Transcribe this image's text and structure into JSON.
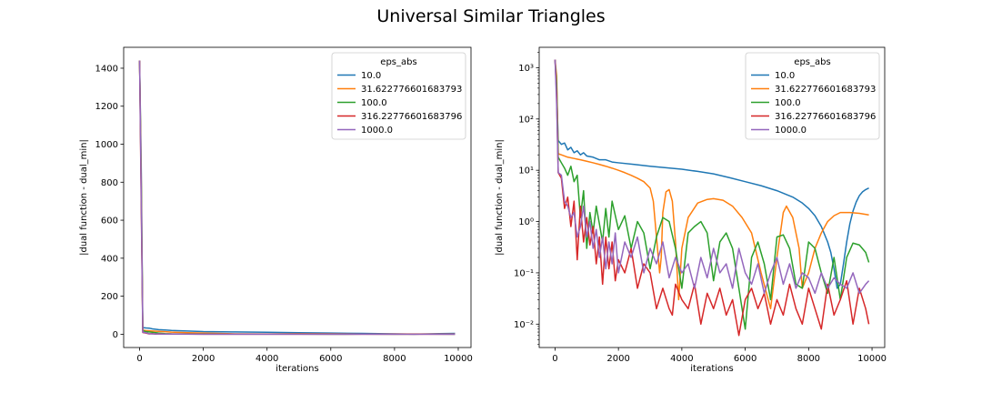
{
  "figure_title": "Universal Similar Triangles",
  "chart_data": [
    {
      "type": "line",
      "title": "",
      "xlabel": "iterations",
      "ylabel": "|dual function - dual_min|",
      "yscale": "linear",
      "xlim": [
        -500,
        10400
      ],
      "ylim": [
        -70,
        1510
      ],
      "xticks": [
        0,
        2000,
        4000,
        6000,
        8000,
        10000
      ],
      "yticks": [
        0,
        200,
        400,
        600,
        800,
        1000,
        1200,
        1400
      ],
      "ytick_labels": [
        "0",
        "200",
        "400",
        "600",
        "800",
        "1000",
        "1200",
        "1400"
      ],
      "grid": false,
      "legend": {
        "title": "eps_abs",
        "placement": "top-right"
      },
      "series": [
        {
          "name": "10.0",
          "color": "#1f77b4",
          "x": [
            0,
            50,
            100,
            200,
            300,
            400,
            600,
            800,
            1000,
            2000,
            3000,
            4000,
            5000,
            6000,
            7000,
            8000,
            8600,
            9000,
            9400,
            9900
          ],
          "y": [
            1440,
            900,
            35,
            33,
            32,
            28,
            24,
            22,
            20,
            14,
            12,
            10,
            8,
            6,
            4,
            2,
            0.3,
            1.2,
            3,
            4.5
          ]
        },
        {
          "name": "31.622776601683793",
          "color": "#ff7f0e",
          "x": [
            0,
            50,
            100,
            200,
            400,
            600,
            800,
            1000,
            1500,
            2000,
            3000,
            4000,
            5000,
            6000,
            7000,
            8000,
            9000,
            9900
          ],
          "y": [
            1440,
            850,
            21,
            19,
            17,
            15,
            13,
            11,
            8,
            6,
            2,
            1.5,
            2.5,
            2,
            0.8,
            1.5,
            1.4,
            1.3
          ]
        },
        {
          "name": "100.0",
          "color": "#2ca02c",
          "x": [
            0,
            50,
            100,
            200,
            400,
            600,
            800,
            1000,
            2000,
            3000,
            4000,
            5000,
            6000,
            7000,
            8000,
            9000,
            9900
          ],
          "y": [
            1440,
            800,
            18,
            14,
            10,
            6,
            3,
            2,
            1,
            0.5,
            0.8,
            0.6,
            0.1,
            0.5,
            0.2,
            0.4,
            0.15
          ]
        },
        {
          "name": "316.22776601683796",
          "color": "#d62728",
          "x": [
            0,
            50,
            100,
            200,
            300,
            400,
            500,
            600,
            800,
            1000,
            2000,
            3000,
            4000,
            5000,
            6000,
            7000,
            8000,
            9000,
            9900
          ],
          "y": [
            1440,
            700,
            9,
            6,
            1.8,
            3,
            0.8,
            2,
            0.6,
            1,
            0.2,
            0.08,
            0.05,
            0.03,
            0.02,
            0.04,
            0.02,
            0.03,
            0.01
          ]
        },
        {
          "name": "1000.0",
          "color": "#9467bd",
          "x": [
            0,
            50,
            100,
            200,
            300,
            400,
            500,
            600,
            800,
            1000,
            2000,
            3000,
            4000,
            5000,
            6000,
            7000,
            8000,
            9000,
            9900
          ],
          "y": [
            1440,
            750,
            10,
            8,
            2.5,
            2,
            1,
            1.5,
            0.5,
            0.8,
            0.3,
            0.2,
            0.15,
            0.2,
            0.1,
            0.08,
            0.1,
            0.08,
            0.06
          ]
        }
      ]
    },
    {
      "type": "line",
      "title": "",
      "xlabel": "iterations",
      "ylabel": "|dual function - dual_min|",
      "yscale": "log",
      "xlim": [
        -500,
        10400
      ],
      "ylim": [
        0.0035,
        2500
      ],
      "xticks": [
        0,
        2000,
        4000,
        6000,
        8000,
        10000
      ],
      "yticks": [
        0.01,
        0.1,
        1,
        10,
        100,
        1000
      ],
      "ytick_labels": [
        "10⁻²",
        "10⁻¹",
        "10⁰",
        "10¹",
        "10²",
        "10³"
      ],
      "grid": false,
      "legend": {
        "title": "eps_abs",
        "placement": "top-right"
      },
      "series": [
        {
          "name": "10.0",
          "color": "#1f77b4",
          "x": [
            0,
            50,
            100,
            200,
            300,
            400,
            500,
            600,
            700,
            800,
            900,
            1000,
            1200,
            1400,
            1600,
            1800,
            2000,
            2500,
            3000,
            3500,
            4000,
            4500,
            5000,
            5500,
            6000,
            6500,
            7000,
            7500,
            7800,
            8000,
            8200,
            8400,
            8600,
            8700,
            8800,
            8900,
            9000,
            9100,
            9200,
            9300,
            9400,
            9500,
            9600,
            9700,
            9800,
            9900
          ],
          "y": [
            1440,
            400,
            38,
            32,
            34,
            25,
            28,
            22,
            24,
            20,
            22,
            19,
            18,
            16,
            16,
            14.5,
            14,
            13,
            12,
            11.2,
            10.5,
            9.5,
            8.5,
            7.2,
            6,
            5,
            4,
            3,
            2.3,
            1.8,
            1.3,
            0.8,
            0.4,
            0.25,
            0.12,
            0.05,
            0.06,
            0.15,
            0.4,
            0.9,
            1.6,
            2.4,
            3.2,
            3.8,
            4.2,
            4.5
          ]
        },
        {
          "name": "31.622776601683793",
          "color": "#ff7f0e",
          "x": [
            0,
            50,
            100,
            200,
            400,
            600,
            800,
            1000,
            1200,
            1400,
            1600,
            1800,
            2000,
            2200,
            2400,
            2600,
            2800,
            3000,
            3100,
            3200,
            3300,
            3350,
            3400,
            3500,
            3600,
            3700,
            3800,
            3900,
            4000,
            4200,
            4500,
            4800,
            5000,
            5300,
            5600,
            5900,
            6200,
            6500,
            6800,
            7000,
            7200,
            7300,
            7500,
            7700,
            7800,
            8000,
            8200,
            8400,
            8600,
            8800,
            9000,
            9300,
            9600,
            9900
          ],
          "y": [
            1440,
            700,
            21,
            20,
            18,
            17,
            16,
            15,
            14,
            13,
            12,
            11,
            10,
            9,
            8,
            7,
            6,
            4.5,
            2.5,
            0.5,
            0.1,
            0.2,
            1.5,
            3.8,
            4.2,
            2.5,
            0.4,
            0.03,
            0.3,
            1.2,
            2.3,
            2.7,
            2.8,
            2.6,
            2,
            1.2,
            0.6,
            0.1,
            0.02,
            0.2,
            1.5,
            2,
            1.2,
            0.3,
            0.05,
            0.1,
            0.3,
            0.6,
            1,
            1.3,
            1.5,
            1.5,
            1.45,
            1.35
          ]
        },
        {
          "name": "100.0",
          "color": "#2ca02c",
          "x": [
            0,
            50,
            100,
            200,
            300,
            400,
            500,
            600,
            700,
            800,
            900,
            1000,
            1100,
            1200,
            1300,
            1400,
            1500,
            1600,
            1700,
            1800,
            2000,
            2200,
            2400,
            2600,
            2800,
            3000,
            3200,
            3400,
            3600,
            3800,
            4000,
            4200,
            4400,
            4600,
            4800,
            5000,
            5200,
            5400,
            5600,
            5800,
            6000,
            6200,
            6400,
            6600,
            6800,
            7000,
            7200,
            7400,
            7600,
            7800,
            8000,
            8200,
            8400,
            8600,
            8800,
            9000,
            9200,
            9400,
            9600,
            9800,
            9900
          ],
          "y": [
            1440,
            500,
            18,
            14,
            11,
            8,
            12,
            6,
            8,
            1.2,
            4,
            0.3,
            1.5,
            0.6,
            2,
            0.9,
            0.4,
            1.8,
            0.5,
            2.5,
            0.7,
            1.3,
            0.3,
            1,
            0.6,
            0.12,
            0.5,
            1.2,
            1,
            0.3,
            0.05,
            0.6,
            0.8,
            1,
            0.6,
            0.07,
            0.4,
            0.6,
            0.3,
            0.05,
            0.008,
            0.2,
            0.4,
            0.15,
            0.03,
            0.5,
            0.55,
            0.3,
            0.06,
            0.05,
            0.4,
            0.3,
            0.1,
            0.04,
            0.2,
            0.03,
            0.2,
            0.38,
            0.35,
            0.25,
            0.16
          ]
        },
        {
          "name": "316.22776601683796",
          "color": "#d62728",
          "x": [
            0,
            50,
            100,
            200,
            300,
            400,
            500,
            600,
            700,
            800,
            900,
            1000,
            1100,
            1200,
            1300,
            1400,
            1500,
            1600,
            1700,
            1800,
            1900,
            2000,
            2200,
            2400,
            2600,
            2800,
            3000,
            3200,
            3400,
            3600,
            3700,
            3800,
            4000,
            4200,
            4400,
            4600,
            4800,
            5000,
            5200,
            5400,
            5600,
            5800,
            6000,
            6200,
            6400,
            6600,
            6800,
            7000,
            7200,
            7400,
            7600,
            7800,
            8000,
            8200,
            8400,
            8600,
            8800,
            9000,
            9200,
            9400,
            9600,
            9800,
            9900
          ],
          "y": [
            1440,
            300,
            9,
            7,
            1.8,
            3,
            0.8,
            2.5,
            0.18,
            2,
            0.4,
            1.2,
            0.35,
            0.8,
            0.15,
            0.5,
            0.06,
            0.5,
            0.12,
            0.4,
            0.07,
            0.18,
            0.1,
            0.3,
            0.05,
            0.15,
            0.1,
            0.02,
            0.05,
            0.02,
            0.015,
            0.06,
            0.03,
            0.02,
            0.06,
            0.01,
            0.04,
            0.02,
            0.05,
            0.015,
            0.03,
            0.006,
            0.03,
            0.05,
            0.02,
            0.04,
            0.01,
            0.03,
            0.015,
            0.06,
            0.02,
            0.01,
            0.05,
            0.02,
            0.008,
            0.06,
            0.015,
            0.03,
            0.07,
            0.01,
            0.05,
            0.02,
            0.01
          ]
        },
        {
          "name": "1000.0",
          "color": "#9467bd",
          "x": [
            0,
            50,
            100,
            200,
            300,
            400,
            500,
            600,
            700,
            800,
            900,
            1000,
            1100,
            1200,
            1300,
            1400,
            1500,
            1600,
            1700,
            1800,
            1900,
            2000,
            2200,
            2400,
            2600,
            2800,
            3000,
            3200,
            3400,
            3600,
            3800,
            4000,
            4200,
            4400,
            4600,
            4800,
            5000,
            5200,
            5400,
            5600,
            5800,
            6000,
            6200,
            6400,
            6600,
            6800,
            7000,
            7200,
            7400,
            7600,
            7800,
            8000,
            8200,
            8400,
            8600,
            8800,
            9000,
            9200,
            9400,
            9600,
            9800,
            9900
          ],
          "y": [
            1440,
            200,
            9,
            8,
            2.5,
            2,
            1.2,
            1.5,
            0.5,
            0.8,
            2,
            0.5,
            1,
            0.3,
            0.7,
            0.2,
            0.5,
            0.12,
            0.4,
            0.15,
            0.6,
            0.1,
            0.4,
            0.2,
            0.5,
            0.1,
            0.3,
            0.15,
            0.4,
            0.08,
            0.2,
            0.1,
            0.15,
            0.05,
            0.2,
            0.08,
            0.3,
            0.1,
            0.15,
            0.05,
            0.3,
            0.1,
            0.06,
            0.15,
            0.04,
            0.1,
            0.2,
            0.06,
            0.15,
            0.05,
            0.1,
            0.08,
            0.04,
            0.1,
            0.05,
            0.08,
            0.06,
            0.05,
            0.1,
            0.04,
            0.06,
            0.07
          ]
        }
      ]
    }
  ]
}
